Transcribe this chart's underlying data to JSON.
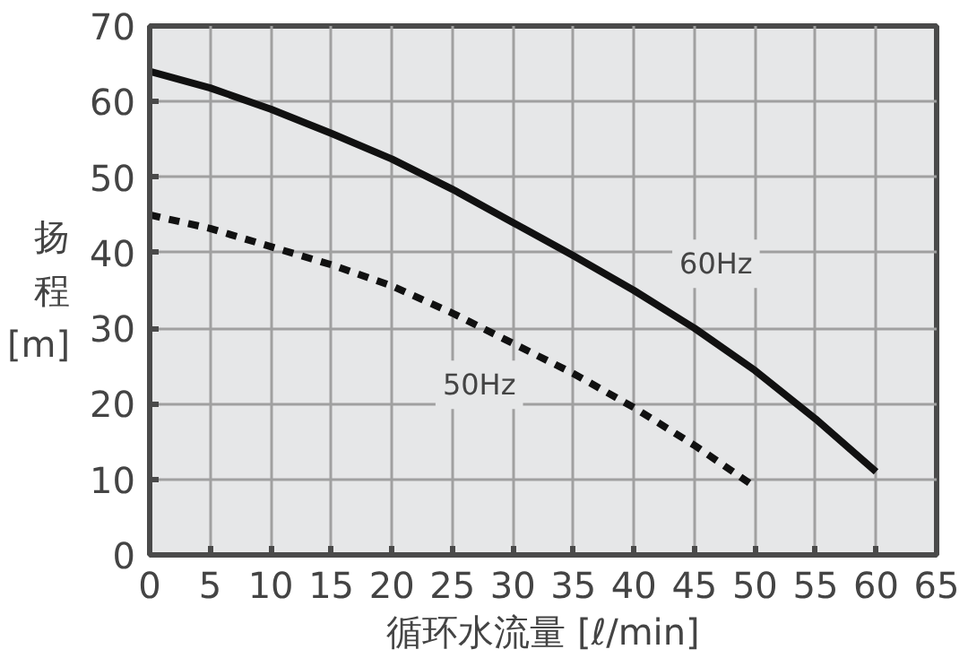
{
  "chart_data": {
    "type": "line",
    "xlabel": "循环水流量 [ℓ/min]",
    "ylabel": "扬程 [m]",
    "xlim": [
      0,
      65
    ],
    "ylim": [
      0,
      70
    ],
    "xticks": [
      0,
      5,
      10,
      15,
      20,
      25,
      30,
      35,
      40,
      45,
      50,
      55,
      60,
      65
    ],
    "yticks": [
      0,
      10,
      20,
      30,
      40,
      50,
      60,
      70
    ],
    "grid": true,
    "series": [
      {
        "name": "60Hz",
        "color": "#111111",
        "line_style": "solid",
        "x": [
          0,
          5,
          10,
          15,
          20,
          25,
          30,
          35,
          40,
          45,
          50,
          55,
          60
        ],
        "values": [
          64,
          61.8,
          59,
          55.8,
          52.4,
          48.4,
          44,
          39.6,
          35,
          30,
          24.4,
          18,
          11
        ]
      },
      {
        "name": "50Hz",
        "color": "#111111",
        "line_style": "dashed",
        "x": [
          0,
          5,
          10,
          15,
          20,
          25,
          30,
          35,
          40,
          45,
          50
        ],
        "values": [
          45,
          43.2,
          40.8,
          38.4,
          35.6,
          32,
          28,
          24,
          19.5,
          14.5,
          9
        ]
      }
    ]
  }
}
